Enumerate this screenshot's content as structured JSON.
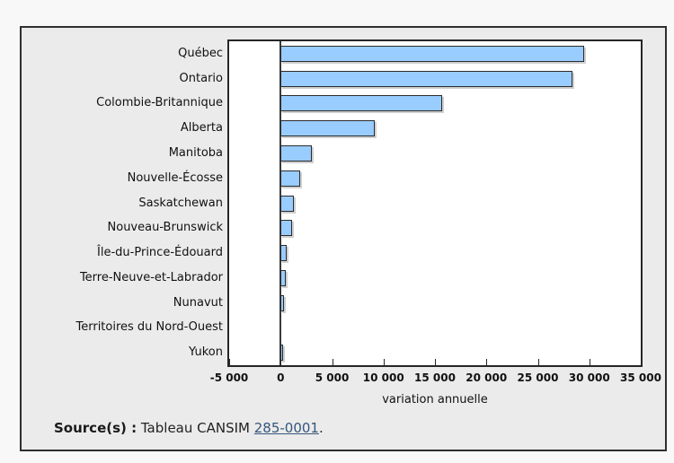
{
  "figure": {
    "background": "#ebebeb",
    "border_color": "#2e2e2e",
    "plot_background": "#ffffff"
  },
  "chart_data": {
    "type": "bar",
    "orientation": "horizontal",
    "title": "",
    "categories": [
      "Québec",
      "Ontario",
      "Colombie-Britannique",
      "Alberta",
      "Manitoba",
      "Nouvelle-Écosse",
      "Saskatchewan",
      "Nouveau-Brunswick",
      "Île-du-Prince-Édouard",
      "Terre-Neuve-et-Labrador",
      "Nunavut",
      "Territoires du Nord-Ouest",
      "Yukon"
    ],
    "values": [
      29300,
      28200,
      15500,
      9000,
      2900,
      1700,
      1100,
      900,
      430,
      290,
      150,
      0,
      25
    ],
    "xlabel": "variation annuelle",
    "ylabel": "",
    "xlim": [
      -5000,
      35000
    ],
    "xticks": [
      -5000,
      0,
      5000,
      10000,
      15000,
      20000,
      25000,
      30000,
      35000
    ],
    "xtick_labels": [
      "-5 000",
      "0",
      "5 000",
      "10 000",
      "15 000",
      "20 000",
      "25 000",
      "30 000",
      "35 000"
    ],
    "bar_fill": "#99CCFF",
    "bar_border": "#2b2b2b",
    "zero_line": true,
    "grid": false,
    "legend_position": "none"
  },
  "source": {
    "label": "Source(s) :",
    "text_before_link": " Tableau CANSIM ",
    "link": "285-0001",
    "after_link": "."
  }
}
